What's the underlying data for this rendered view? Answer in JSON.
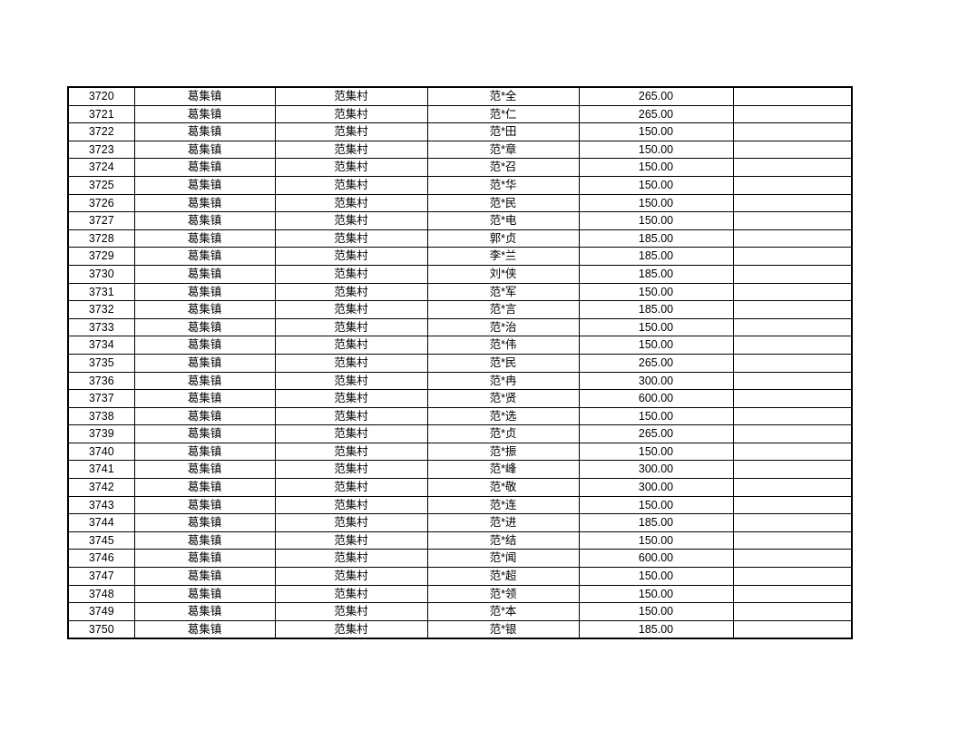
{
  "page": {
    "background_color": "#ffffff",
    "table_border_color": "#000000",
    "table_text_color": "#000000"
  },
  "table": {
    "rows": [
      {
        "id": "3720",
        "town": "葛集镇",
        "village": "范集村",
        "name": "范*全",
        "amount": "265.00",
        "note": ""
      },
      {
        "id": "3721",
        "town": "葛集镇",
        "village": "范集村",
        "name": "范*仁",
        "amount": "265.00",
        "note": ""
      },
      {
        "id": "3722",
        "town": "葛集镇",
        "village": "范集村",
        "name": "范*田",
        "amount": "150.00",
        "note": ""
      },
      {
        "id": "3723",
        "town": "葛集镇",
        "village": "范集村",
        "name": "范*章",
        "amount": "150.00",
        "note": ""
      },
      {
        "id": "3724",
        "town": "葛集镇",
        "village": "范集村",
        "name": "范*召",
        "amount": "150.00",
        "note": ""
      },
      {
        "id": "3725",
        "town": "葛集镇",
        "village": "范集村",
        "name": "范*华",
        "amount": "150.00",
        "note": ""
      },
      {
        "id": "3726",
        "town": "葛集镇",
        "village": "范集村",
        "name": "范*民",
        "amount": "150.00",
        "note": ""
      },
      {
        "id": "3727",
        "town": "葛集镇",
        "village": "范集村",
        "name": "范*电",
        "amount": "150.00",
        "note": ""
      },
      {
        "id": "3728",
        "town": "葛集镇",
        "village": "范集村",
        "name": "郭*贞",
        "amount": "185.00",
        "note": ""
      },
      {
        "id": "3729",
        "town": "葛集镇",
        "village": "范集村",
        "name": "李*兰",
        "amount": "185.00",
        "note": ""
      },
      {
        "id": "3730",
        "town": "葛集镇",
        "village": "范集村",
        "name": "刘*侠",
        "amount": "185.00",
        "note": ""
      },
      {
        "id": "3731",
        "town": "葛集镇",
        "village": "范集村",
        "name": "范*军",
        "amount": "150.00",
        "note": ""
      },
      {
        "id": "3732",
        "town": "葛集镇",
        "village": "范集村",
        "name": "范*言",
        "amount": "185.00",
        "note": ""
      },
      {
        "id": "3733",
        "town": "葛集镇",
        "village": "范集村",
        "name": "范*治",
        "amount": "150.00",
        "note": ""
      },
      {
        "id": "3734",
        "town": "葛集镇",
        "village": "范集村",
        "name": "范*伟",
        "amount": "150.00",
        "note": ""
      },
      {
        "id": "3735",
        "town": "葛集镇",
        "village": "范集村",
        "name": "范*民",
        "amount": "265.00",
        "note": ""
      },
      {
        "id": "3736",
        "town": "葛集镇",
        "village": "范集村",
        "name": "范*冉",
        "amount": "300.00",
        "note": ""
      },
      {
        "id": "3737",
        "town": "葛集镇",
        "village": "范集村",
        "name": "范*贤",
        "amount": "600.00",
        "note": ""
      },
      {
        "id": "3738",
        "town": "葛集镇",
        "village": "范集村",
        "name": "范*选",
        "amount": "150.00",
        "note": ""
      },
      {
        "id": "3739",
        "town": "葛集镇",
        "village": "范集村",
        "name": "范*贞",
        "amount": "265.00",
        "note": ""
      },
      {
        "id": "3740",
        "town": "葛集镇",
        "village": "范集村",
        "name": "范*振",
        "amount": "150.00",
        "note": ""
      },
      {
        "id": "3741",
        "town": "葛集镇",
        "village": "范集村",
        "name": "范*峰",
        "amount": "300.00",
        "note": ""
      },
      {
        "id": "3742",
        "town": "葛集镇",
        "village": "范集村",
        "name": "范*敬",
        "amount": "300.00",
        "note": ""
      },
      {
        "id": "3743",
        "town": "葛集镇",
        "village": "范集村",
        "name": "范*连",
        "amount": "150.00",
        "note": ""
      },
      {
        "id": "3744",
        "town": "葛集镇",
        "village": "范集村",
        "name": "范*进",
        "amount": "185.00",
        "note": ""
      },
      {
        "id": "3745",
        "town": "葛集镇",
        "village": "范集村",
        "name": "范*结",
        "amount": "150.00",
        "note": ""
      },
      {
        "id": "3746",
        "town": "葛集镇",
        "village": "范集村",
        "name": "范*闻",
        "amount": "600.00",
        "note": ""
      },
      {
        "id": "3747",
        "town": "葛集镇",
        "village": "范集村",
        "name": "范*超",
        "amount": "150.00",
        "note": ""
      },
      {
        "id": "3748",
        "town": "葛集镇",
        "village": "范集村",
        "name": "范*领",
        "amount": "150.00",
        "note": ""
      },
      {
        "id": "3749",
        "town": "葛集镇",
        "village": "范集村",
        "name": "范*本",
        "amount": "150.00",
        "note": ""
      },
      {
        "id": "3750",
        "town": "葛集镇",
        "village": "范集村",
        "name": "范*银",
        "amount": "185.00",
        "note": ""
      }
    ]
  }
}
